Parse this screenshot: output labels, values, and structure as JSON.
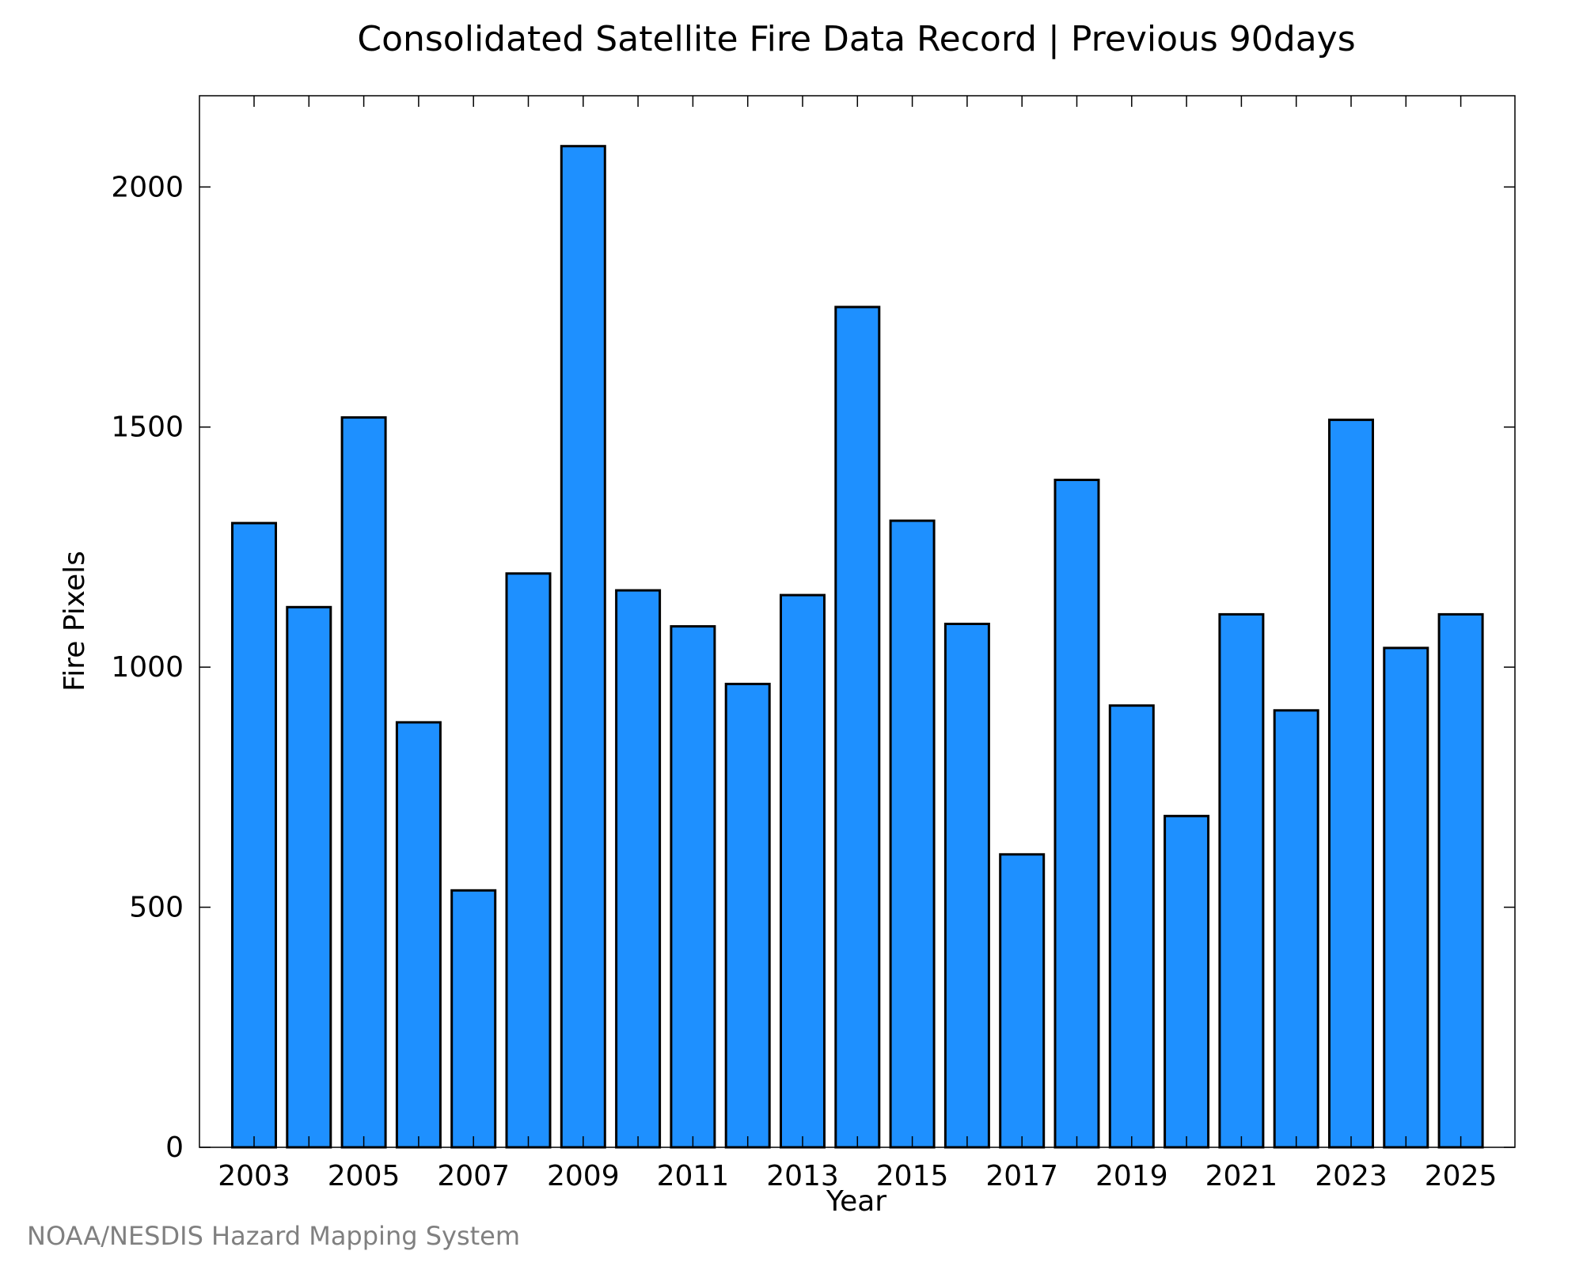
{
  "chart_data": {
    "type": "bar",
    "title": "Consolidated Satellite Fire Data Record | Previous 90days",
    "xlabel": "Year",
    "ylabel": "Fire Pixels",
    "categories": [
      "2003",
      "2004",
      "2005",
      "2006",
      "2007",
      "2008",
      "2009",
      "2010",
      "2011",
      "2012",
      "2013",
      "2014",
      "2015",
      "2016",
      "2017",
      "2018",
      "2019",
      "2020",
      "2021",
      "2022",
      "2023",
      "2024",
      "2025"
    ],
    "values": [
      1300,
      1125,
      1520,
      885,
      535,
      1195,
      2085,
      1160,
      1085,
      965,
      1150,
      1750,
      1305,
      1090,
      610,
      1390,
      920,
      690,
      1110,
      910,
      1515,
      1040,
      1110
    ],
    "x_tick_labels": [
      "2003",
      "2005",
      "2007",
      "2009",
      "2011",
      "2013",
      "2015",
      "2017",
      "2019",
      "2021",
      "2023",
      "2025"
    ],
    "y_ticks": [
      0,
      500,
      1000,
      1500,
      2000
    ],
    "ylim": [
      0,
      2190
    ],
    "grid": false,
    "bar_color": "#1e90ff",
    "bar_edge_color": "#000000"
  },
  "footer": {
    "credit": "NOAA/NESDIS Hazard Mapping System"
  }
}
